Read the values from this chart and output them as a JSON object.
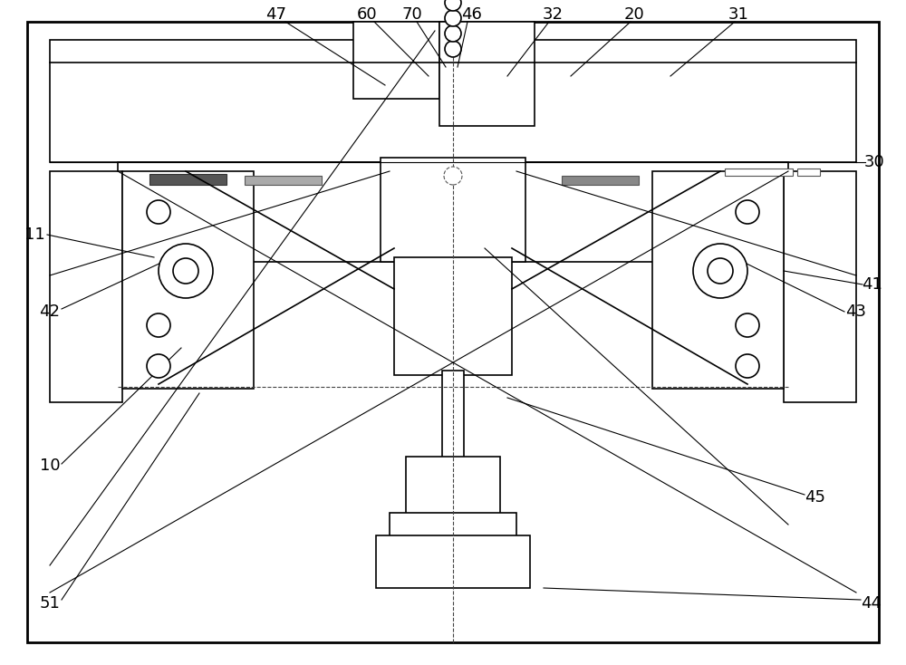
{
  "bg_color": "#ffffff",
  "line_color": "#000000",
  "label_color": "#000000",
  "figsize": [
    10.0,
    7.34
  ],
  "dpi": 100,
  "label_fs": 13,
  "lw": 1.2,
  "lw_thick": 2.0,
  "lw_thin": 0.8
}
